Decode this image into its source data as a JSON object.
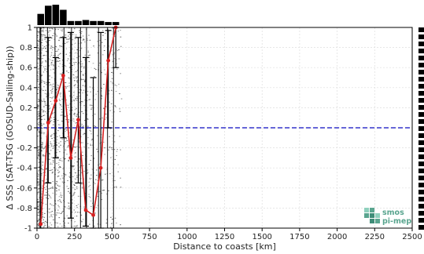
{
  "chart_data": {
    "type": "line",
    "xlabel": "Distance to coasts [km]",
    "ylabel": "Δ SSS (SAT-TSG (GOSUD-Sailing-ship))",
    "xlim": [
      0,
      2500
    ],
    "ylim": [
      -1,
      1
    ],
    "x_ticks": [
      "0",
      "250",
      "500",
      "750",
      "1000",
      "1250",
      "1500",
      "1750",
      "2000",
      "2250",
      "2500"
    ],
    "y_ticks": [
      "-1",
      "-0.8",
      "-0.6",
      "-0.4",
      "-0.2",
      "0",
      "0.2",
      "0.4",
      "0.6",
      "0.8",
      "1"
    ],
    "grid": true,
    "zero_line": {
      "y": 0,
      "color": "#3333cc",
      "style": "dashed"
    },
    "median_series": {
      "color": "#d62020",
      "x": [
        25,
        75,
        125,
        175,
        225,
        275,
        325,
        375,
        425,
        475,
        525
      ],
      "y": [
        -0.96,
        0.05,
        0.27,
        0.52,
        -0.3,
        0.08,
        -0.82,
        -0.87,
        -0.4,
        0.67,
        1.02
      ]
    },
    "error_bars": [
      {
        "x": 25,
        "low": -1.0,
        "high": 1.0
      },
      {
        "x": 75,
        "low": -0.55,
        "high": 0.9
      },
      {
        "x": 125,
        "low": -0.3,
        "high": 0.7
      },
      {
        "x": 175,
        "low": -0.1,
        "high": 0.9
      },
      {
        "x": 225,
        "low": -0.9,
        "high": 0.95
      },
      {
        "x": 275,
        "low": -0.55,
        "high": 0.9
      },
      {
        "x": 325,
        "low": -0.98,
        "high": 0.7
      },
      {
        "x": 375,
        "low": -1.0,
        "high": 0.5
      },
      {
        "x": 425,
        "low": -1.0,
        "high": 0.95
      },
      {
        "x": 475,
        "low": 0.0,
        "high": 0.97
      },
      {
        "x": 525,
        "low": 0.6,
        "high": 1.0
      }
    ],
    "top_histogram": {
      "x": [
        25,
        75,
        125,
        175,
        225,
        275,
        325,
        375,
        425,
        475,
        525
      ],
      "counts": [
        0.55,
        0.95,
        1.0,
        0.75,
        0.2,
        0.2,
        0.25,
        0.2,
        0.2,
        0.15,
        0.15
      ]
    },
    "scatter_density": {
      "xmax": 560,
      "ymin": -1,
      "ymax": 1,
      "colors": [
        "#7a7a7a",
        "#555555",
        "#999999"
      ]
    }
  },
  "logo": {
    "line1": "smos",
    "line2": "pi-mep",
    "color": "#5aa58f"
  },
  "colors": {
    "frame": "#000000",
    "grid": "#dddddd",
    "median": "#d62020",
    "zero_line": "#3333cc",
    "bars": "#000000"
  }
}
